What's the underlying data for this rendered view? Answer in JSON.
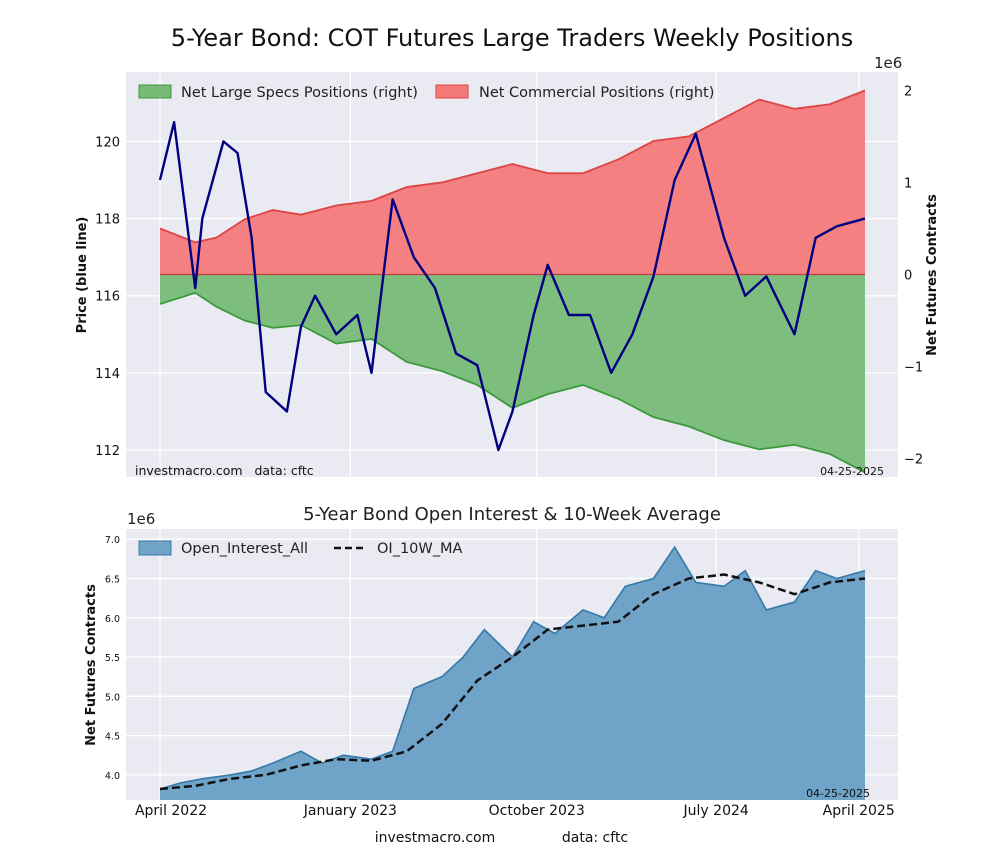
{
  "title": "5-Year Bond: COT Futures Large Traders Weekly Positions",
  "footer": {
    "source": "investmacro.com",
    "data": "data: cftc"
  },
  "chart_data": [
    {
      "type": "area",
      "y_left_label": "Price (blue line)",
      "y_right_label": "Net Futures Contracts",
      "y_right_multiplier": "1e6",
      "ylim_left": [
        111.3,
        121.8
      ],
      "ylim_right": [
        -2.2,
        2.2
      ],
      "y_left_ticks": [
        112,
        114,
        116,
        118,
        120
      ],
      "y_right_ticks": [
        -2,
        -1,
        0,
        1,
        2
      ],
      "legend_position": "top-left",
      "watermark": "investmacro.com   data: cftc",
      "date_label": "04-25-2025",
      "grid": true,
      "series": [
        {
          "name": "Net Large Specs Positions (right)",
          "color": "#3a9a3a",
          "fill": "#77bb77",
          "x": [
            0,
            0.05,
            0.08,
            0.12,
            0.16,
            0.2,
            0.25,
            0.3,
            0.35,
            0.4,
            0.45,
            0.5,
            0.55,
            0.6,
            0.65,
            0.7,
            0.75,
            0.8,
            0.85,
            0.9,
            0.95,
            1.0
          ],
          "values": [
            -0.32,
            -0.2,
            -0.35,
            -0.5,
            -0.58,
            -0.55,
            -0.75,
            -0.7,
            -0.95,
            -1.05,
            -1.2,
            -1.45,
            -1.3,
            -1.2,
            -1.35,
            -1.55,
            -1.65,
            -1.8,
            -1.9,
            -1.85,
            -1.95,
            -2.15
          ]
        },
        {
          "name": "Net Commercial Positions (right)",
          "color": "#dd4444",
          "fill": "#f47a7a",
          "x": [
            0,
            0.05,
            0.08,
            0.12,
            0.16,
            0.2,
            0.25,
            0.3,
            0.35,
            0.4,
            0.45,
            0.5,
            0.55,
            0.6,
            0.65,
            0.7,
            0.75,
            0.8,
            0.85,
            0.9,
            0.95,
            1.0
          ],
          "values": [
            0.5,
            0.35,
            0.4,
            0.6,
            0.7,
            0.65,
            0.75,
            0.8,
            0.95,
            1.0,
            1.1,
            1.2,
            1.1,
            1.1,
            1.25,
            1.45,
            1.5,
            1.7,
            1.9,
            1.8,
            1.85,
            2.0
          ]
        },
        {
          "name": "Price (blue line)",
          "color": "#000080",
          "x": [
            0,
            0.02,
            0.05,
            0.06,
            0.09,
            0.11,
            0.13,
            0.15,
            0.18,
            0.2,
            0.22,
            0.25,
            0.28,
            0.3,
            0.33,
            0.36,
            0.39,
            0.42,
            0.45,
            0.48,
            0.5,
            0.53,
            0.55,
            0.58,
            0.61,
            0.64,
            0.67,
            0.7,
            0.73,
            0.76,
            0.8,
            0.83,
            0.86,
            0.9,
            0.93,
            0.96,
            1.0
          ],
          "values": [
            119.0,
            120.5,
            116.2,
            118.0,
            120.0,
            119.7,
            117.5,
            113.5,
            113.0,
            115.2,
            116.0,
            115.0,
            115.5,
            114.0,
            118.5,
            117.0,
            116.2,
            114.5,
            114.2,
            112.0,
            113.0,
            115.5,
            116.8,
            115.5,
            115.5,
            114.0,
            115.0,
            116.5,
            119.0,
            120.2,
            117.5,
            116.0,
            116.5,
            115.0,
            117.5,
            117.8,
            118.0
          ]
        }
      ]
    },
    {
      "type": "area",
      "title": "5-Year Bond Open Interest & 10-Week Average",
      "ylabel": "Net Futures Contracts",
      "y_multiplier": "1e6",
      "ylim": [
        3.68,
        7.13
      ],
      "y_ticks": [
        "4.0",
        "4.5",
        "5.0",
        "5.5",
        "6.0",
        "6.5",
        "7.0"
      ],
      "x_ticks": [
        "April 2022",
        "January 2023",
        "October 2023",
        "July 2024",
        "April 2025"
      ],
      "date_label": "04-25-2025",
      "legend_position": "top-left",
      "grid": true,
      "series": [
        {
          "name": "Open_Interest_All",
          "color": "#3579a8",
          "fill": "#6fa3c8",
          "x": [
            0,
            0.03,
            0.06,
            0.1,
            0.13,
            0.16,
            0.2,
            0.23,
            0.26,
            0.3,
            0.33,
            0.36,
            0.4,
            0.43,
            0.46,
            0.5,
            0.53,
            0.56,
            0.6,
            0.63,
            0.66,
            0.7,
            0.73,
            0.76,
            0.8,
            0.83,
            0.86,
            0.9,
            0.93,
            0.96,
            1.0
          ],
          "values": [
            3.82,
            3.9,
            3.95,
            4.0,
            4.05,
            4.15,
            4.3,
            4.15,
            4.25,
            4.2,
            4.3,
            5.1,
            5.25,
            5.5,
            5.85,
            5.5,
            5.95,
            5.8,
            6.1,
            6.0,
            6.4,
            6.5,
            6.9,
            6.45,
            6.4,
            6.6,
            6.1,
            6.2,
            6.6,
            6.5,
            6.6
          ]
        },
        {
          "name": "OI_10W_MA",
          "color": "#111111",
          "dash": true,
          "x": [
            0,
            0.05,
            0.1,
            0.15,
            0.2,
            0.25,
            0.3,
            0.35,
            0.4,
            0.45,
            0.5,
            0.55,
            0.6,
            0.65,
            0.7,
            0.75,
            0.8,
            0.85,
            0.9,
            0.95,
            1.0
          ],
          "values": [
            3.82,
            3.86,
            3.95,
            4.0,
            4.12,
            4.2,
            4.18,
            4.3,
            4.65,
            5.2,
            5.5,
            5.85,
            5.9,
            5.95,
            6.3,
            6.5,
            6.55,
            6.45,
            6.3,
            6.45,
            6.5
          ]
        }
      ]
    }
  ]
}
